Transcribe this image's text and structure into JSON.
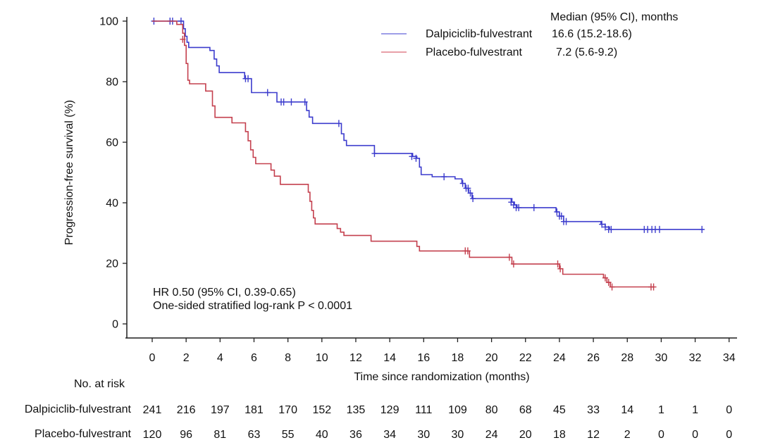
{
  "chart_data": {
    "type": "line",
    "subtype": "kaplan-meier-step-plot",
    "title": "",
    "xlabel": "Time since randomization (months)",
    "ylabel": "Progression-free survival (%)",
    "xlim": [
      0,
      34
    ],
    "ylim": [
      0,
      100
    ],
    "xticks": [
      0,
      2,
      4,
      6,
      8,
      10,
      12,
      14,
      16,
      18,
      20,
      22,
      24,
      26,
      28,
      30,
      32,
      34
    ],
    "yticks": [
      0,
      20,
      40,
      60,
      80,
      100
    ],
    "grid": "off",
    "annotations": [
      "HR 0.50 (95% CI, 0.39-0.65)",
      "One-sided stratified log-rank P < 0.0001"
    ],
    "legend": {
      "position": "top-right",
      "header": "Median (95% CI), months"
    },
    "series": [
      {
        "key": "dalpiciclib",
        "name": "Dalpiciclib-fulvestrant",
        "median": "16.6 (15.2-18.6)",
        "color": "#3c3ccd",
        "legend_line_color": "#9e9ee8",
        "steps": [
          [
            0,
            100
          ],
          [
            1.85,
            97.5
          ],
          [
            1.95,
            95.0
          ],
          [
            2.05,
            93.0
          ],
          [
            2.15,
            91.3
          ],
          [
            3.4,
            90.3
          ],
          [
            3.65,
            87.5
          ],
          [
            3.8,
            85.2
          ],
          [
            3.95,
            83.0
          ],
          [
            5.45,
            81.0
          ],
          [
            5.85,
            76.4
          ],
          [
            7.35,
            73.3
          ],
          [
            9.1,
            70.5
          ],
          [
            9.25,
            68.3
          ],
          [
            9.45,
            66.2
          ],
          [
            11.15,
            62.8
          ],
          [
            11.3,
            60.6
          ],
          [
            11.45,
            58.9
          ],
          [
            13.1,
            56.3
          ],
          [
            15.35,
            55.3
          ],
          [
            15.6,
            54.7
          ],
          [
            15.75,
            51.8
          ],
          [
            15.85,
            49.3
          ],
          [
            16.5,
            48.6
          ],
          [
            17.85,
            47.9
          ],
          [
            18.25,
            46.4
          ],
          [
            18.45,
            44.8
          ],
          [
            18.65,
            43.2
          ],
          [
            18.85,
            41.4
          ],
          [
            21.2,
            40.2
          ],
          [
            21.35,
            39.3
          ],
          [
            21.5,
            38.4
          ],
          [
            23.8,
            37.0
          ],
          [
            24.0,
            35.6
          ],
          [
            24.25,
            33.8
          ],
          [
            26.45,
            32.9
          ],
          [
            26.7,
            32.0
          ],
          [
            26.95,
            31.2
          ],
          [
            32.5,
            31.2
          ]
        ],
        "censor_marks": [
          [
            0.1,
            100
          ],
          [
            1.05,
            100
          ],
          [
            1.2,
            100
          ],
          [
            1.7,
            100
          ],
          [
            5.5,
            81.0
          ],
          [
            5.65,
            81.0
          ],
          [
            6.8,
            76.4
          ],
          [
            7.6,
            73.3
          ],
          [
            7.75,
            73.3
          ],
          [
            8.2,
            73.3
          ],
          [
            9.0,
            73.3
          ],
          [
            11.0,
            66.2
          ],
          [
            13.1,
            56.3
          ],
          [
            15.3,
            55.3
          ],
          [
            15.55,
            54.7
          ],
          [
            17.2,
            48.6
          ],
          [
            18.3,
            46.4
          ],
          [
            18.5,
            44.8
          ],
          [
            18.62,
            44.8
          ],
          [
            18.75,
            43.2
          ],
          [
            18.9,
            41.4
          ],
          [
            21.15,
            40.2
          ],
          [
            21.3,
            39.3
          ],
          [
            21.45,
            38.4
          ],
          [
            21.6,
            38.4
          ],
          [
            22.5,
            38.4
          ],
          [
            23.85,
            37.0
          ],
          [
            24.0,
            35.6
          ],
          [
            24.12,
            35.6
          ],
          [
            24.25,
            33.8
          ],
          [
            24.4,
            33.8
          ],
          [
            26.5,
            32.9
          ],
          [
            26.7,
            32.0
          ],
          [
            26.9,
            31.2
          ],
          [
            27.05,
            31.2
          ],
          [
            29.0,
            31.2
          ],
          [
            29.2,
            31.2
          ],
          [
            29.45,
            31.2
          ],
          [
            29.65,
            31.2
          ],
          [
            29.9,
            31.2
          ],
          [
            32.4,
            31.2
          ]
        ]
      },
      {
        "key": "placebo",
        "name": "Placebo-fulvestrant",
        "median": "7.2 (5.6-9.2)",
        "color": "#c4404e",
        "legend_line_color": "#e8a0a8",
        "steps": [
          [
            0,
            100
          ],
          [
            1.45,
            98.9
          ],
          [
            1.8,
            96.0
          ],
          [
            1.9,
            92.0
          ],
          [
            2.0,
            86.0
          ],
          [
            2.1,
            80.5
          ],
          [
            2.2,
            79.3
          ],
          [
            3.15,
            76.9
          ],
          [
            3.55,
            72.0
          ],
          [
            3.7,
            68.2
          ],
          [
            4.7,
            66.4
          ],
          [
            5.5,
            63.5
          ],
          [
            5.65,
            60.5
          ],
          [
            5.8,
            57.5
          ],
          [
            5.95,
            55.0
          ],
          [
            6.1,
            52.9
          ],
          [
            7.0,
            50.8
          ],
          [
            7.2,
            48.8
          ],
          [
            7.55,
            46.1
          ],
          [
            9.2,
            43.5
          ],
          [
            9.3,
            40.5
          ],
          [
            9.4,
            37.5
          ],
          [
            9.5,
            35.0
          ],
          [
            9.6,
            33.0
          ],
          [
            10.9,
            31.5
          ],
          [
            11.1,
            30.3
          ],
          [
            11.3,
            29.2
          ],
          [
            12.9,
            27.3
          ],
          [
            15.6,
            25.6
          ],
          [
            15.75,
            24.1
          ],
          [
            18.7,
            22.0
          ],
          [
            21.2,
            19.8
          ],
          [
            24.0,
            18.2
          ],
          [
            24.2,
            16.4
          ],
          [
            26.6,
            15.2
          ],
          [
            26.8,
            13.7
          ],
          [
            27.0,
            12.2
          ],
          [
            29.6,
            12.2
          ]
        ],
        "censor_marks": [
          [
            1.8,
            94.0
          ],
          [
            18.45,
            24.1
          ],
          [
            18.6,
            24.1
          ],
          [
            21.05,
            22.0
          ],
          [
            21.3,
            19.8
          ],
          [
            23.9,
            19.8
          ],
          [
            24.05,
            18.2
          ],
          [
            26.7,
            15.2
          ],
          [
            26.9,
            13.7
          ],
          [
            27.1,
            12.2
          ],
          [
            29.4,
            12.2
          ],
          [
            29.55,
            12.2
          ]
        ]
      }
    ],
    "risk_table": {
      "title": "No. at risk",
      "times": [
        0,
        2,
        4,
        6,
        8,
        10,
        12,
        14,
        16,
        18,
        20,
        22,
        24,
        26,
        28,
        30,
        32,
        34
      ],
      "rows": [
        {
          "label": "Dalpiciclib-fulvestrant",
          "counts": [
            241,
            216,
            197,
            181,
            170,
            152,
            135,
            129,
            111,
            109,
            80,
            68,
            45,
            33,
            14,
            1,
            1,
            0
          ]
        },
        {
          "label": "Placebo-fulvestrant",
          "counts": [
            120,
            96,
            81,
            63,
            55,
            40,
            36,
            34,
            30,
            30,
            24,
            20,
            18,
            12,
            2,
            0,
            0,
            0
          ]
        }
      ]
    }
  }
}
